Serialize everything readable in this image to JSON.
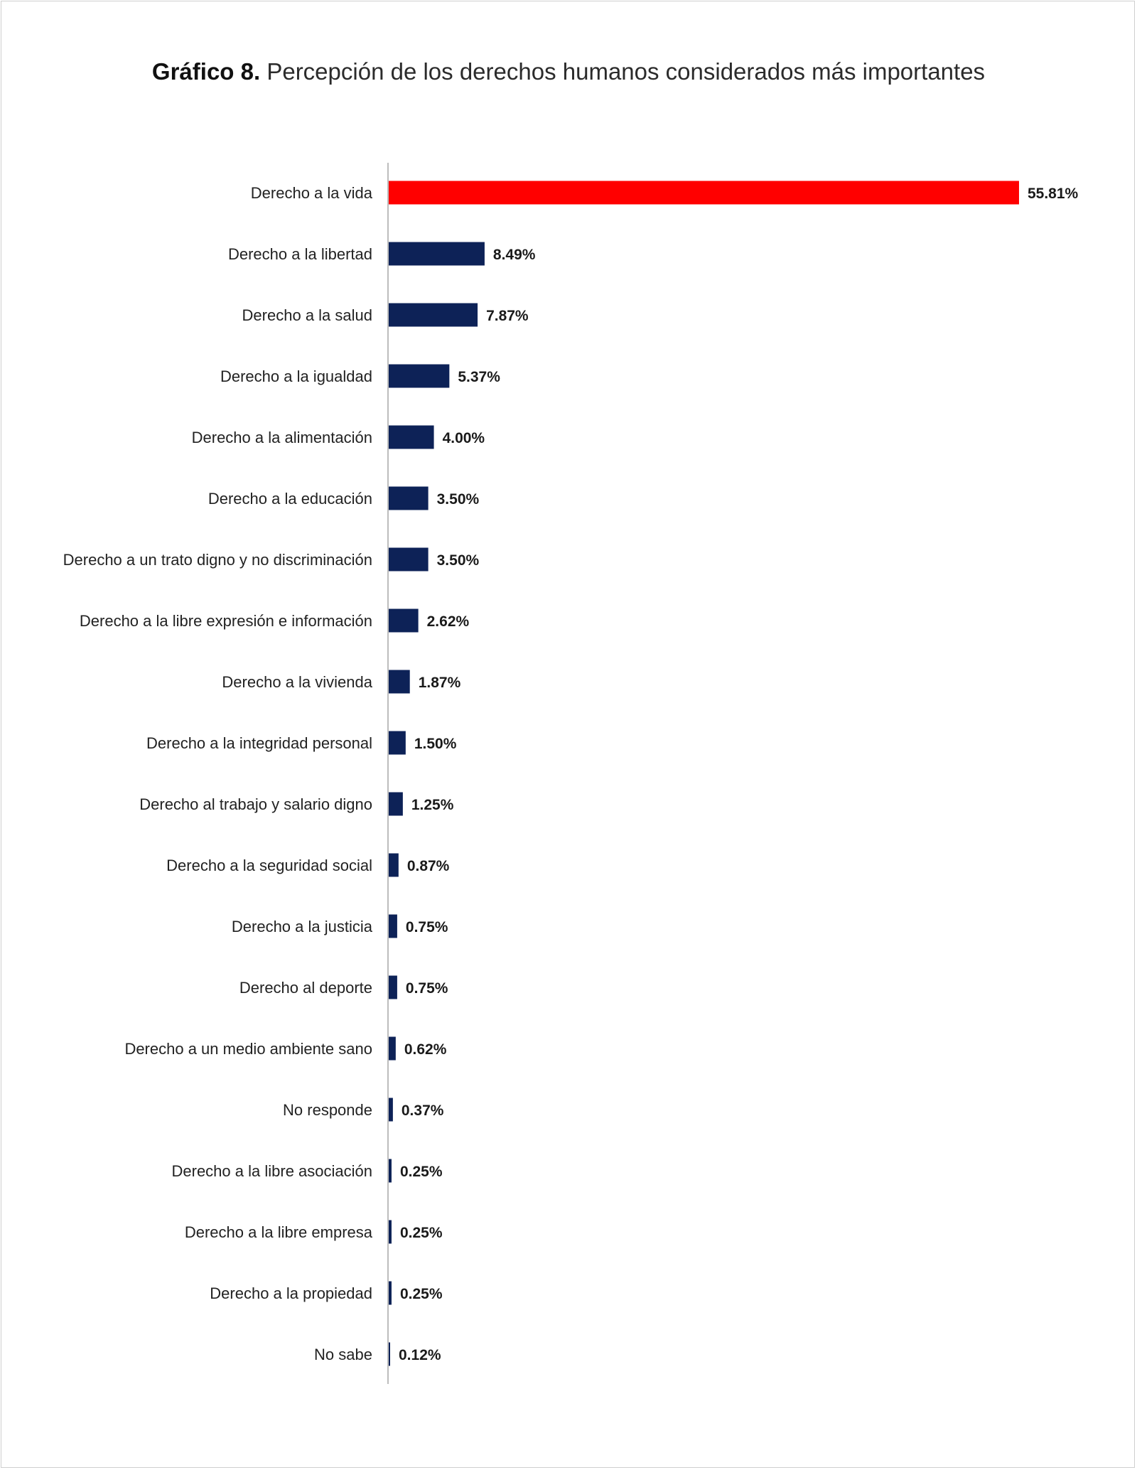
{
  "title": {
    "prefix": "Gráfico 8.",
    "text": "Percepción de los derechos humanos considerados más importantes"
  },
  "colors": {
    "highlight": "#ff0000",
    "bar": "#0d2257",
    "axis": "#bdbdbd"
  },
  "chart_data": {
    "type": "bar",
    "orientation": "horizontal",
    "title": "Gráfico 8. Percepción de los derechos humanos considerados más importantes",
    "categories": [
      "Derecho a la vida",
      "Derecho a la libertad",
      "Derecho a la salud",
      "Derecho a la igualdad",
      "Derecho a la alimentación",
      "Derecho a la educación",
      "Derecho a un trato digno y no discriminación",
      "Derecho a la libre expresión e información",
      "Derecho a la vivienda",
      "Derecho a la integridad personal",
      "Derecho al trabajo y salario digno",
      "Derecho a la seguridad social",
      "Derecho a la justicia",
      "Derecho al deporte",
      "Derecho a un medio ambiente sano",
      "No responde",
      "Derecho a la libre asociación",
      "Derecho a la libre empresa",
      "Derecho a la propiedad",
      "No sabe"
    ],
    "values": [
      55.81,
      8.49,
      7.87,
      5.37,
      4.0,
      3.5,
      3.5,
      2.62,
      1.87,
      1.5,
      1.25,
      0.87,
      0.75,
      0.75,
      0.62,
      0.37,
      0.25,
      0.25,
      0.25,
      0.12
    ],
    "value_labels": [
      "55.81%",
      "8.49%",
      "7.87%",
      "5.37%",
      "4.00%",
      "3.50%",
      "3.50%",
      "2.62%",
      "1.87%",
      "1.50%",
      "1.25%",
      "0.87%",
      "0.75%",
      "0.75%",
      "0.62%",
      "0.37%",
      "0.25%",
      "0.25%",
      "0.25%",
      "0.12%"
    ],
    "highlight_index": 0,
    "xlim": [
      0,
      56
    ],
    "grid": false,
    "legend": "none"
  }
}
